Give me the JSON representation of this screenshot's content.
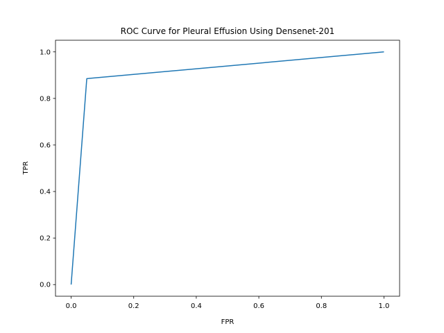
{
  "chart_data": {
    "type": "line",
    "title": "ROC Curve for Pleural Effusion Using Densenet-201",
    "xlabel": "FPR",
    "ylabel": "TPR",
    "xlim": [
      -0.05,
      1.05
    ],
    "ylim": [
      -0.05,
      1.05
    ],
    "xticks": [
      0.0,
      0.2,
      0.4,
      0.6,
      0.8,
      1.0
    ],
    "yticks": [
      0.0,
      0.2,
      0.4,
      0.6,
      0.8,
      1.0
    ],
    "xtick_labels": [
      "0.0",
      "0.2",
      "0.4",
      "0.6",
      "0.8",
      "1.0"
    ],
    "ytick_labels": [
      "0.0",
      "0.2",
      "0.4",
      "0.6",
      "0.8",
      "1.0"
    ],
    "grid": false,
    "series": [
      {
        "color": "#1f77b4",
        "x": [
          0.0,
          0.05,
          1.0
        ],
        "y": [
          0.0,
          0.885,
          1.0
        ]
      }
    ]
  }
}
